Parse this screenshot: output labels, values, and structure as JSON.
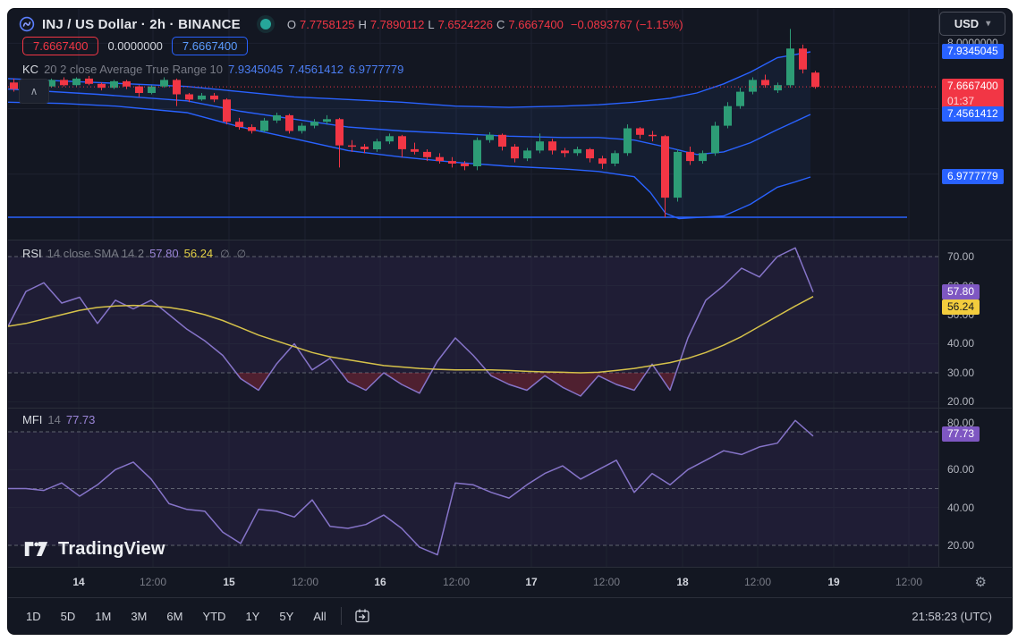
{
  "header": {
    "title": "INJ / US Dollar · 2h · BINANCE",
    "ohlc": {
      "o_label": "O",
      "o": "7.7758125",
      "h_label": "H",
      "h": "7.7890112",
      "l_label": "L",
      "l": "7.6524226",
      "c_label": "C",
      "c": "7.6667400",
      "change": "−0.0893767 (−1.15%)"
    },
    "currency": "USD"
  },
  "price_boxes": {
    "sell": "7.6667400",
    "spread": "0.0000000",
    "buy": "7.6667400"
  },
  "indicators": {
    "kc": {
      "label": "KC",
      "params": "20 2 close Average True Range 10",
      "values": [
        "7.9345045",
        "7.4561412",
        "6.9777779"
      ]
    },
    "rsi": {
      "label": "RSI",
      "params": "14 close SMA 14 2",
      "value": "57.80",
      "sma_value": "56.24",
      "null_icon": "∅"
    },
    "mfi": {
      "label": "MFI",
      "params": "14",
      "value": "77.73"
    }
  },
  "price_axis": {
    "top_label": "8.0000000",
    "kc_upper_badge": "7.9345045",
    "last_price_badge": "7.6667400",
    "countdown": "01:37",
    "kc_middle_badge": "7.4561412",
    "kc_lower_badge": "6.9777779"
  },
  "rsi_axis": {
    "labels": [
      "70.00",
      "60.00",
      "50.00",
      "40.00",
      "30.00",
      "20.00"
    ],
    "value_badge": "57.80",
    "sma_badge": "56.24"
  },
  "mfi_axis": {
    "hidden_label": "80.00",
    "labels": [
      "60.00",
      "40.00",
      "20.00"
    ],
    "value_badge": "77.73"
  },
  "time_axis": {
    "labels": [
      {
        "text": "14",
        "major": true
      },
      {
        "text": "12:00",
        "major": false
      },
      {
        "text": "15",
        "major": true
      },
      {
        "text": "12:00",
        "major": false
      },
      {
        "text": "16",
        "major": true
      },
      {
        "text": "12:00",
        "major": false
      },
      {
        "text": "17",
        "major": true
      },
      {
        "text": "12:00",
        "major": false
      },
      {
        "text": "18",
        "major": true
      },
      {
        "text": "12:00",
        "major": false
      },
      {
        "text": "19",
        "major": true
      },
      {
        "text": "12:00",
        "major": false
      }
    ]
  },
  "toolbar": {
    "ranges": [
      "1D",
      "5D",
      "1M",
      "3M",
      "6M",
      "YTD",
      "1Y",
      "5Y",
      "All"
    ],
    "clock": "21:58:23 (UTC)"
  },
  "watermark": {
    "text": "TradingView"
  },
  "ui_icons": {
    "chevron_down": "▾",
    "chevron_up": "∧",
    "gear": "⚙",
    "null_set": "∅"
  },
  "chart_data": {
    "type": "candlestick+indicators",
    "symbol": "INJ/USD",
    "interval": "2h",
    "exchange": "BINANCE",
    "last": {
      "open": 7.7758125,
      "high": 7.7890112,
      "low": 7.6524226,
      "close": 7.66674,
      "change": -0.0893767,
      "change_pct": -1.15
    },
    "colors": {
      "up": "#2d9c76",
      "down": "#f23645",
      "kc": "#2962ff",
      "rsi": "#8674c9",
      "sma": "#d6c24a",
      "mfi": "#8674c9",
      "price_line": "#f23645",
      "badge_blue": "#2962ff",
      "badge_violet": "#7e57c2",
      "badge_yellow": "#f2cc3d"
    },
    "price_scale": {
      "visible_range": [
        6.5,
        8.15
      ],
      "gridlines": [
        8.0,
        7.5,
        7.0
      ]
    },
    "support_level": 6.67,
    "candles": [
      [
        7.7,
        7.73,
        7.63,
        7.65
      ],
      [
        7.65,
        7.71,
        7.64,
        7.7
      ],
      [
        7.7,
        7.72,
        7.66,
        7.67
      ],
      [
        7.67,
        7.73,
        7.66,
        7.72
      ],
      [
        7.72,
        7.74,
        7.67,
        7.68
      ],
      [
        7.68,
        7.74,
        7.67,
        7.73
      ],
      [
        7.73,
        7.75,
        7.68,
        7.69
      ],
      [
        7.69,
        7.7,
        7.64,
        7.66
      ],
      [
        7.66,
        7.72,
        7.65,
        7.71
      ],
      [
        7.71,
        7.72,
        7.65,
        7.67
      ],
      [
        7.67,
        7.68,
        7.59,
        7.62
      ],
      [
        7.62,
        7.68,
        7.61,
        7.67
      ],
      [
        7.67,
        7.74,
        7.66,
        7.72
      ],
      [
        7.72,
        7.73,
        7.52,
        7.61
      ],
      [
        7.61,
        7.62,
        7.55,
        7.57
      ],
      [
        7.57,
        7.62,
        7.56,
        7.6
      ],
      [
        7.6,
        7.62,
        7.55,
        7.57
      ],
      [
        7.57,
        7.58,
        7.38,
        7.4
      ],
      [
        7.4,
        7.43,
        7.34,
        7.36
      ],
      [
        7.36,
        7.38,
        7.31,
        7.33
      ],
      [
        7.33,
        7.43,
        7.32,
        7.41
      ],
      [
        7.41,
        7.47,
        7.39,
        7.45
      ],
      [
        7.45,
        7.46,
        7.31,
        7.33
      ],
      [
        7.33,
        7.39,
        7.31,
        7.37
      ],
      [
        7.37,
        7.42,
        7.35,
        7.4
      ],
      [
        7.4,
        7.45,
        7.38,
        7.42
      ],
      [
        7.42,
        7.43,
        7.05,
        7.22
      ],
      [
        7.22,
        7.26,
        7.17,
        7.21
      ],
      [
        7.21,
        7.23,
        7.16,
        7.19
      ],
      [
        7.19,
        7.27,
        7.17,
        7.25
      ],
      [
        7.25,
        7.31,
        7.23,
        7.29
      ],
      [
        7.29,
        7.3,
        7.13,
        7.19
      ],
      [
        7.19,
        7.24,
        7.15,
        7.17
      ],
      [
        7.17,
        7.19,
        7.1,
        7.13
      ],
      [
        7.13,
        7.16,
        7.08,
        7.1
      ],
      [
        7.1,
        7.13,
        7.05,
        7.08
      ],
      [
        7.08,
        7.1,
        7.03,
        7.06
      ],
      [
        7.06,
        7.28,
        7.03,
        7.26
      ],
      [
        7.26,
        7.32,
        7.24,
        7.3
      ],
      [
        7.3,
        7.31,
        7.18,
        7.21
      ],
      [
        7.21,
        7.23,
        7.09,
        7.12
      ],
      [
        7.12,
        7.2,
        7.1,
        7.18
      ],
      [
        7.18,
        7.31,
        7.16,
        7.25
      ],
      [
        7.25,
        7.27,
        7.15,
        7.18
      ],
      [
        7.18,
        7.2,
        7.13,
        7.16
      ],
      [
        7.16,
        7.21,
        7.14,
        7.19
      ],
      [
        7.19,
        7.2,
        7.09,
        7.12
      ],
      [
        7.12,
        7.14,
        7.04,
        7.08
      ],
      [
        7.08,
        7.18,
        7.06,
        7.16
      ],
      [
        7.16,
        7.38,
        7.14,
        7.35
      ],
      [
        7.35,
        7.36,
        7.27,
        7.3
      ],
      [
        7.3,
        7.33,
        7.25,
        7.29
      ],
      [
        7.29,
        7.3,
        6.67,
        6.82
      ],
      [
        6.82,
        7.19,
        6.79,
        7.17
      ],
      [
        7.17,
        7.21,
        7.07,
        7.1
      ],
      [
        7.1,
        7.18,
        7.08,
        7.16
      ],
      [
        7.16,
        7.4,
        7.14,
        7.37
      ],
      [
        7.37,
        7.55,
        7.35,
        7.52
      ],
      [
        7.52,
        7.66,
        7.5,
        7.63
      ],
      [
        7.63,
        7.74,
        7.61,
        7.72
      ],
      [
        7.72,
        7.76,
        7.66,
        7.68
      ],
      [
        7.64,
        7.7,
        7.62,
        7.68
      ],
      [
        7.68,
        8.11,
        7.66,
        7.96
      ],
      [
        7.96,
        7.99,
        7.77,
        7.8
      ],
      [
        7.7758125,
        7.7890112,
        7.6524226,
        7.66674
      ]
    ],
    "keltner": {
      "upper_last": 7.9345045,
      "middle_last": 7.4561412,
      "lower_last": 6.9777779,
      "upper": [
        [
          0,
          7.73
        ],
        [
          100,
          7.7
        ],
        [
          200,
          7.67
        ],
        [
          260,
          7.63
        ],
        [
          320,
          7.59
        ],
        [
          380,
          7.57
        ],
        [
          440,
          7.55
        ],
        [
          500,
          7.52
        ],
        [
          560,
          7.51
        ],
        [
          620,
          7.52
        ],
        [
          660,
          7.53
        ],
        [
          700,
          7.55
        ],
        [
          740,
          7.58
        ],
        [
          770,
          7.62
        ],
        [
          800,
          7.69
        ],
        [
          830,
          7.78
        ],
        [
          860,
          7.89
        ],
        [
          897,
          7.9345
        ]
      ],
      "middle": [
        [
          0,
          7.65
        ],
        [
          100,
          7.61
        ],
        [
          200,
          7.56
        ],
        [
          260,
          7.48
        ],
        [
          320,
          7.42
        ],
        [
          380,
          7.36
        ],
        [
          440,
          7.33
        ],
        [
          500,
          7.31
        ],
        [
          560,
          7.29
        ],
        [
          620,
          7.28
        ],
        [
          660,
          7.28
        ],
        [
          700,
          7.26
        ],
        [
          740,
          7.2
        ],
        [
          770,
          7.15
        ],
        [
          800,
          7.17
        ],
        [
          830,
          7.24
        ],
        [
          860,
          7.34
        ],
        [
          897,
          7.4561
        ]
      ],
      "lower": [
        [
          0,
          7.55
        ],
        [
          60,
          7.54
        ],
        [
          120,
          7.52
        ],
        [
          200,
          7.47
        ],
        [
          260,
          7.36
        ],
        [
          320,
          7.27
        ],
        [
          380,
          7.18
        ],
        [
          440,
          7.13
        ],
        [
          500,
          7.09
        ],
        [
          560,
          7.06
        ],
        [
          620,
          7.04
        ],
        [
          660,
          7.02
        ],
        [
          700,
          6.98
        ],
        [
          718,
          6.86
        ],
        [
          735,
          6.7
        ],
        [
          750,
          6.66
        ],
        [
          800,
          6.68
        ],
        [
          830,
          6.77
        ],
        [
          860,
          6.9
        ],
        [
          880,
          6.94
        ],
        [
          897,
          6.9778
        ]
      ]
    },
    "rsi": {
      "period": 14,
      "last": 57.8,
      "sma_last": 56.24,
      "levels": {
        "upper": 70,
        "lower": 30
      },
      "values": [
        46,
        58,
        61,
        54,
        56,
        47,
        55,
        52,
        55,
        50,
        45,
        41,
        36,
        28,
        24,
        33,
        40,
        31,
        35,
        27,
        24,
        30,
        26,
        23,
        34,
        42,
        36,
        29,
        26,
        24,
        29,
        25,
        22,
        29,
        26,
        24,
        33,
        24,
        42,
        55,
        60,
        66,
        63,
        70,
        73,
        57.8
      ],
      "sma": [
        46,
        47,
        48.5,
        50,
        51.5,
        52.5,
        53,
        53.2,
        53,
        52.5,
        51.5,
        50,
        48,
        45.5,
        43,
        41,
        39,
        37,
        35.5,
        34.5,
        33.5,
        32.5,
        32,
        31.5,
        31.2,
        31,
        31,
        31,
        30.8,
        30.5,
        30.3,
        30.2,
        30,
        30.2,
        30.8,
        31.5,
        32.5,
        33.5,
        35,
        37,
        39.5,
        42.5,
        46,
        49.5,
        53,
        56.24
      ]
    },
    "mfi": {
      "period": 14,
      "last": 77.73,
      "levels": {
        "upper": 80,
        "middle": 50,
        "lower": 20
      },
      "values": [
        50,
        50,
        49,
        53,
        46,
        52,
        60,
        64,
        55,
        42,
        39,
        38,
        27,
        21,
        39,
        38,
        35,
        44,
        30,
        29,
        31,
        36,
        29,
        19,
        15,
        53,
        52,
        48,
        45,
        52,
        58,
        62,
        55,
        60,
        65,
        48,
        58,
        52,
        60,
        65,
        70,
        68,
        72,
        74,
        86,
        77.73
      ]
    }
  }
}
